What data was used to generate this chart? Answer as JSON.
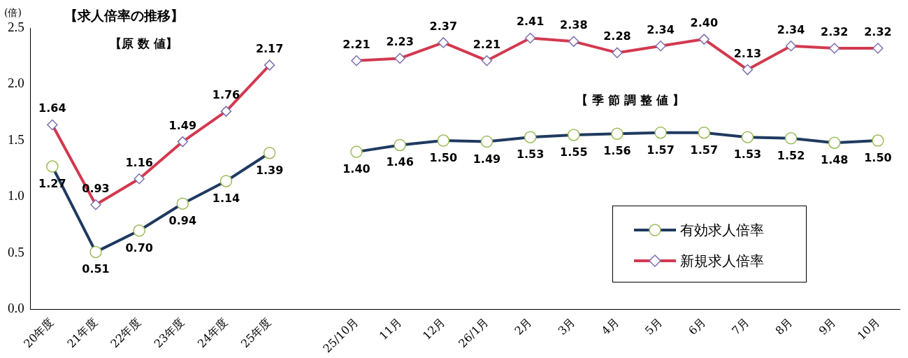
{
  "chart_data": {
    "type": "line",
    "title": "【求人倍率の推移】",
    "ylabel": "(倍)",
    "categories": [
      "20年度",
      "21年度",
      "22年度",
      "23年度",
      "24年度",
      "25年度",
      null,
      "25/10月",
      "11月",
      "12月",
      "26/1月",
      "2月",
      "3月",
      "4月",
      "5月",
      "6月",
      "7月",
      "8月",
      "9月",
      "10月"
    ],
    "series": [
      {
        "name": "有効求人倍率",
        "color": "#1f3a60",
        "marker": "circle",
        "values": [
          1.27,
          0.51,
          0.7,
          0.94,
          1.14,
          1.39,
          null,
          1.4,
          1.46,
          1.5,
          1.49,
          1.53,
          1.55,
          1.56,
          1.57,
          1.57,
          1.53,
          1.52,
          1.48,
          1.5
        ],
        "value_labels": [
          "1.27",
          "0.51",
          "0.70",
          "0.94",
          "1.14",
          "1.39",
          null,
          "1.40",
          "1.46",
          "1.50",
          "1.49",
          "1.53",
          "1.55",
          "1.56",
          "1.57",
          "1.57",
          "1.53",
          "1.52",
          "1.48",
          "1.50"
        ]
      },
      {
        "name": "新規求人倍率",
        "color": "#d2394f",
        "marker": "diamond",
        "values": [
          1.64,
          0.93,
          1.16,
          1.49,
          1.76,
          2.17,
          null,
          2.21,
          2.23,
          2.37,
          2.21,
          2.41,
          2.38,
          2.28,
          2.34,
          2.4,
          2.13,
          2.34,
          2.32,
          2.32
        ],
        "value_labels": [
          "1.64",
          "0.93",
          "1.16",
          "1.49",
          "1.76",
          "2.17",
          null,
          "2.21",
          "2.23",
          "2.37",
          "2.21",
          "2.41",
          "2.38",
          "2.28",
          "2.34",
          "2.40",
          "2.13",
          "2.34",
          "2.32",
          "2.32"
        ]
      }
    ],
    "ylim": [
      0,
      2.5
    ],
    "yticks": [
      {
        "value": 0,
        "label": "0.0"
      },
      0.5,
      {
        "value": 1,
        "label": "1.0"
      },
      1.5,
      {
        "value": 2,
        "label": "2.0"
      },
      2.5
    ],
    "grid": false,
    "legend": "bottom right",
    "line_style": "solid",
    "annotations": [
      "【原 数 値】",
      "【 季 節 調 整 値 】"
    ]
  }
}
